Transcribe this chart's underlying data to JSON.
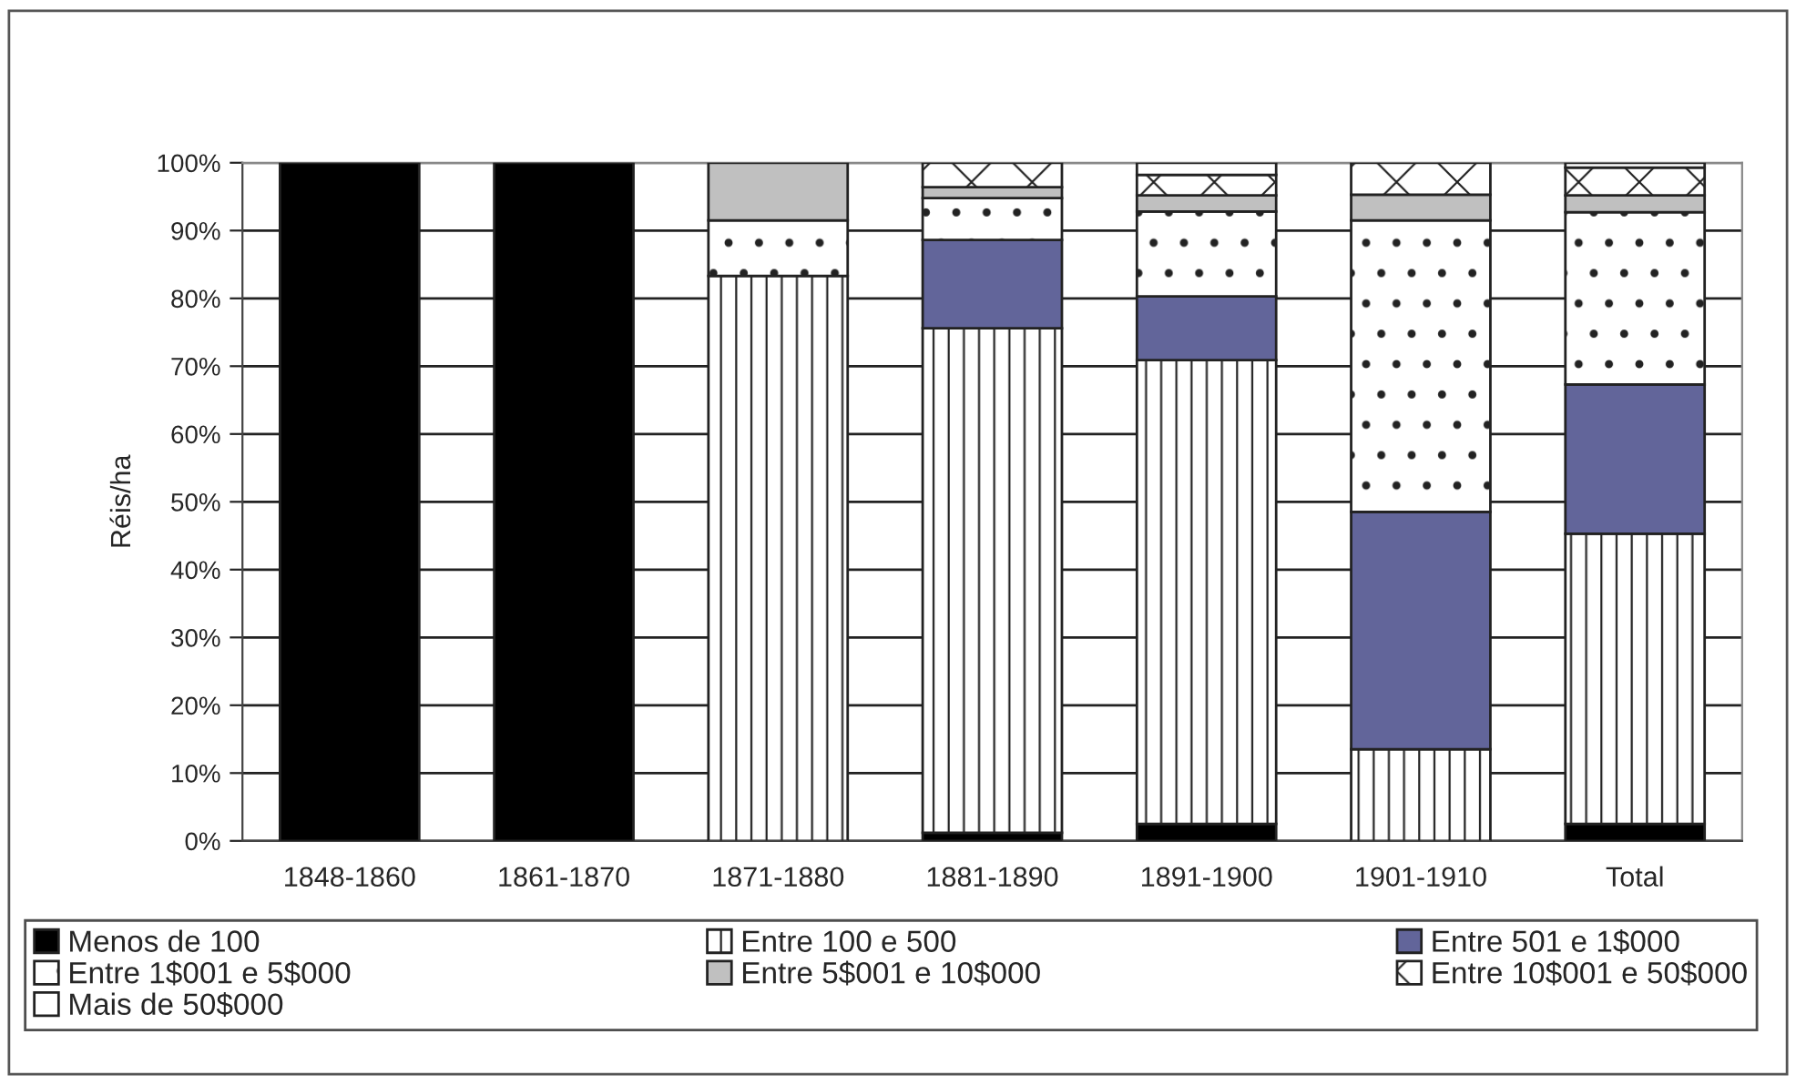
{
  "chart_data": {
    "type": "bar",
    "stacked": true,
    "ylabel": "Réis/ha",
    "categories": [
      "1848-1860",
      "1861-1870",
      "1871-1880",
      "1881-1890",
      "1891-1900",
      "1901-1910",
      "Total"
    ],
    "series": [
      {
        "name": "Menos de 100",
        "color": "#000000",
        "values": [
          100,
          100,
          0,
          1.2,
          2.5,
          0,
          2.5
        ]
      },
      {
        "name": "Entre 100 e 500",
        "color": "#ffffff",
        "values": [
          0,
          0,
          83.3,
          74.4,
          68.4,
          13.5,
          42.8
        ]
      },
      {
        "name": "Entre 501 e 1$000",
        "color": "#62659a",
        "values": [
          0,
          0,
          0,
          13,
          9.4,
          35,
          22
        ]
      },
      {
        "name": "Entre 1$001 e 5$000",
        "color": "#ffffff",
        "values": [
          0,
          0,
          8.2,
          6.2,
          12.5,
          43,
          25.4
        ]
      },
      {
        "name": "Entre 5$001 e 10$000",
        "color": "#c0c0c0",
        "values": [
          0,
          0,
          8.5,
          1.6,
          2.4,
          3.8,
          2.5
        ]
      },
      {
        "name": "Entre 10$001 e 50$000",
        "color": "#ffffff",
        "values": [
          0,
          0,
          0,
          3.6,
          3,
          4.7,
          4.1
        ]
      },
      {
        "name": "Mais de 50$000",
        "color": "#ffffff",
        "values": [
          0,
          0,
          0,
          0,
          1.8,
          0,
          0.7
        ]
      }
    ],
    "ylim": [
      0,
      100
    ],
    "yticks": [
      {
        "value": 0,
        "label": "0%"
      },
      {
        "value": 10,
        "label": "10%"
      },
      {
        "value": 20,
        "label": "20%"
      },
      {
        "value": 30,
        "label": "30%"
      },
      {
        "value": 40,
        "label": "40%"
      },
      {
        "value": 50,
        "label": "50%"
      },
      {
        "value": 60,
        "label": "60%"
      },
      {
        "value": 70,
        "label": "70%"
      },
      {
        "value": 80,
        "label": "80%"
      },
      {
        "value": 90,
        "label": "90%"
      },
      {
        "value": 100,
        "label": "100%"
      }
    ],
    "grid": "y",
    "legend": "bottom"
  }
}
